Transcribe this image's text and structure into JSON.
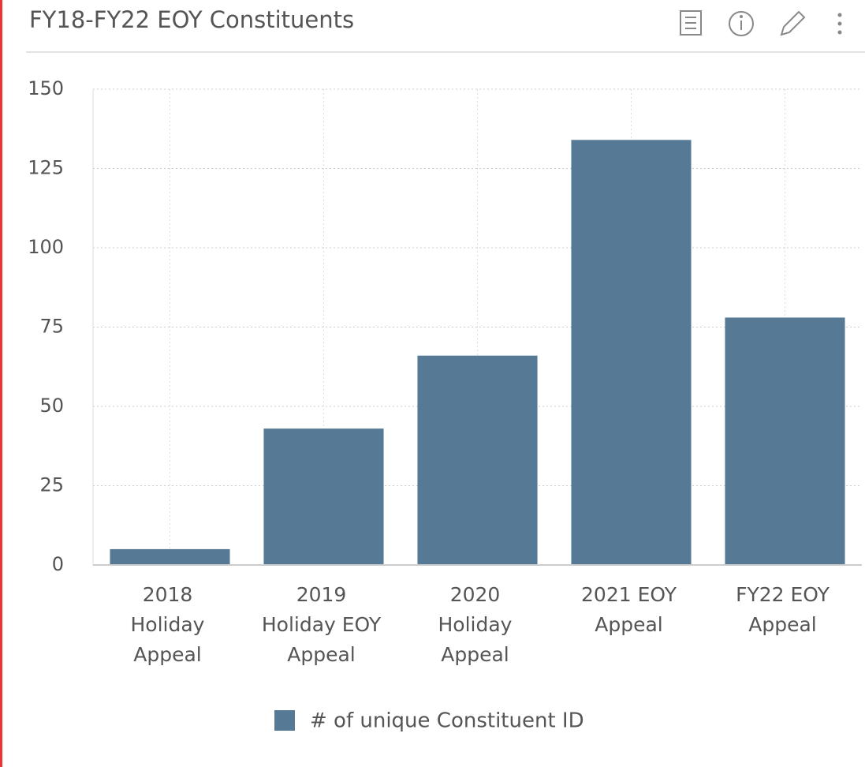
{
  "header": {
    "title": "FY18-FY22 EOY Constituents"
  },
  "chart_data": {
    "type": "bar",
    "categories": [
      "2018 Holiday Appeal",
      "2019 Holiday EOY Appeal",
      "2020 Holiday Appeal",
      "2021 EOY Appeal",
      "FY22 EOY Appeal"
    ],
    "series": [
      {
        "name": "# of unique Constituent ID",
        "color": "#567a95",
        "values": [
          5,
          43,
          66,
          134,
          78
        ]
      }
    ],
    "ylim": [
      0,
      150
    ],
    "yticks": [
      0,
      25,
      50,
      75,
      100,
      125,
      150
    ],
    "grid": true,
    "legend": "bottom"
  }
}
